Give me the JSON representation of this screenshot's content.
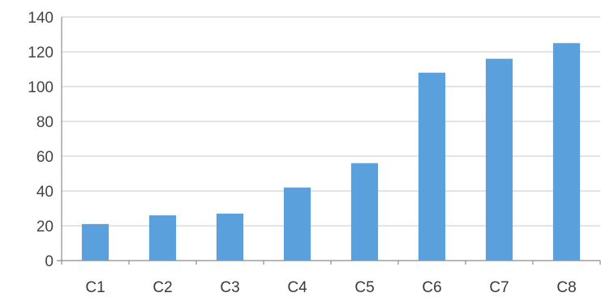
{
  "chart_data": {
    "type": "bar",
    "categories": [
      "C1",
      "C2",
      "C3",
      "C4",
      "C5",
      "C6",
      "C7",
      "C8"
    ],
    "values": [
      21,
      26,
      27,
      42,
      56,
      108,
      116,
      125
    ],
    "title": "",
    "xlabel": "",
    "ylabel": "",
    "ylim": [
      0,
      140
    ],
    "yticks": [
      0,
      20,
      40,
      60,
      80,
      100,
      120,
      140
    ],
    "grid": true,
    "legend": "none",
    "bar_color": "#5aa0dd"
  }
}
